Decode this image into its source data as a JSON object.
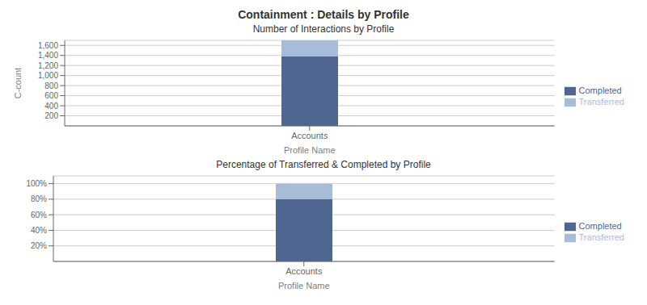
{
  "title": "Containment : Details by Profile",
  "chart_data": [
    {
      "type": "bar",
      "title": "Number of Interactions by Profile",
      "x_label": "Profile Name",
      "y_label": "C-count",
      "categories": [
        "Accounts"
      ],
      "series": [
        {
          "name": "Completed",
          "color": "#4f6690",
          "values": [
            1380
          ]
        },
        {
          "name": "Transferred",
          "color": "#a8bcd8",
          "values": [
            320
          ]
        }
      ],
      "stacked": true,
      "ylim": [
        0,
        1700
      ],
      "yticks": [
        200,
        400,
        600,
        800,
        {
          "value": 1000,
          "label": "1,000"
        },
        {
          "value": 1200,
          "label": "1,200"
        },
        {
          "value": 1400,
          "label": "1,400"
        },
        {
          "value": 1600,
          "label": "1,600"
        }
      ],
      "grid": true,
      "legend": "right"
    },
    {
      "type": "bar",
      "title": "Percentage of Transferred & Completed by Profile",
      "x_label": "Profile Name",
      "categories": [
        "Accounts"
      ],
      "series": [
        {
          "name": "Completed",
          "color": "#4f6690",
          "values": [
            80
          ]
        },
        {
          "name": "Transferred",
          "color": "#a8bcd8",
          "values": [
            20
          ]
        }
      ],
      "stacked": true,
      "ylim": [
        0,
        110
      ],
      "yticks": [
        {
          "value": 20,
          "label": "20%"
        },
        {
          "value": 40,
          "label": "40%"
        },
        {
          "value": 60,
          "label": "60%"
        },
        {
          "value": 80,
          "label": "80%"
        },
        {
          "value": 100,
          "label": "100%"
        }
      ],
      "grid": true,
      "legend": "right"
    }
  ]
}
